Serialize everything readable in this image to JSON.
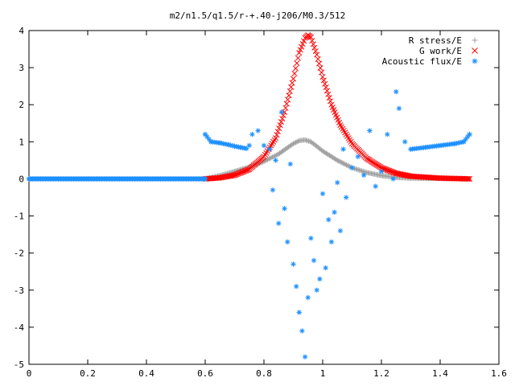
{
  "chart_data": {
    "type": "scatter",
    "title": "m2/n1.5/q1.5/r-+.40-j206/M0.3/512",
    "xlabel": "",
    "ylabel": "",
    "xlim": [
      0,
      1.6
    ],
    "ylim": [
      -5,
      4
    ],
    "xticks": [
      "0",
      "0.2",
      "0.4",
      "0.6",
      "0.8",
      "1",
      "1.2",
      "1.4",
      "1.6"
    ],
    "yticks": [
      "4",
      "3",
      "2",
      "1",
      "0",
      "-1",
      "-2",
      "-3",
      "-4",
      "-5"
    ],
    "grid": false,
    "legend_position": "top-right",
    "series": [
      {
        "name": "R stress/E",
        "marker": "plus",
        "color": "#a0a0a0",
        "points": [
          [
            0.6,
            0.0
          ],
          [
            0.65,
            0.09
          ],
          [
            0.7,
            0.2
          ],
          [
            0.75,
            0.32
          ],
          [
            0.8,
            0.47
          ],
          [
            0.85,
            0.67
          ],
          [
            0.88,
            0.84
          ],
          [
            0.9,
            0.95
          ],
          [
            0.92,
            1.03
          ],
          [
            0.94,
            1.05
          ],
          [
            0.96,
            1.0
          ],
          [
            0.98,
            0.88
          ],
          [
            1.0,
            0.75
          ],
          [
            1.05,
            0.5
          ],
          [
            1.1,
            0.3
          ],
          [
            1.15,
            0.17
          ],
          [
            1.2,
            0.09
          ],
          [
            1.25,
            0.04
          ],
          [
            1.3,
            0.02
          ],
          [
            1.4,
            0.01
          ],
          [
            1.5,
            0.0
          ]
        ]
      },
      {
        "name": "G work/E",
        "marker": "cross",
        "color": "#ff0000",
        "points": [
          [
            0.6,
            0.0
          ],
          [
            0.65,
            0.03
          ],
          [
            0.7,
            0.1
          ],
          [
            0.75,
            0.26
          ],
          [
            0.8,
            0.6
          ],
          [
            0.84,
            1.1
          ],
          [
            0.87,
            1.8
          ],
          [
            0.9,
            2.7
          ],
          [
            0.92,
            3.4
          ],
          [
            0.94,
            3.8
          ],
          [
            0.95,
            3.88
          ],
          [
            0.96,
            3.82
          ],
          [
            0.98,
            3.35
          ],
          [
            1.0,
            2.75
          ],
          [
            1.03,
            2.0
          ],
          [
            1.06,
            1.45
          ],
          [
            1.1,
            0.95
          ],
          [
            1.15,
            0.55
          ],
          [
            1.2,
            0.3
          ],
          [
            1.25,
            0.15
          ],
          [
            1.3,
            0.07
          ],
          [
            1.4,
            0.02
          ],
          [
            1.5,
            0.0
          ]
        ]
      },
      {
        "name": "Acoustic flux/E",
        "marker": "star",
        "color": "#1e90ff",
        "points": [
          [
            0.6,
            1.2
          ],
          [
            0.62,
            1.0
          ],
          [
            0.65,
            0.97
          ],
          [
            0.68,
            0.92
          ],
          [
            0.7,
            0.88
          ],
          [
            0.72,
            0.85
          ],
          [
            0.74,
            0.82
          ],
          [
            0.75,
            0.9
          ],
          [
            0.76,
            1.2
          ],
          [
            0.78,
            1.3
          ],
          [
            0.8,
            0.9
          ],
          [
            0.82,
            0.8
          ],
          [
            0.83,
            -0.3
          ],
          [
            0.84,
            0.5
          ],
          [
            0.85,
            -1.2
          ],
          [
            0.86,
            1.8
          ],
          [
            0.87,
            -0.8
          ],
          [
            0.88,
            -1.7
          ],
          [
            0.89,
            0.4
          ],
          [
            0.9,
            -2.3
          ],
          [
            0.91,
            -2.9
          ],
          [
            0.92,
            -3.6
          ],
          [
            0.93,
            -4.1
          ],
          [
            0.94,
            -4.8
          ],
          [
            0.95,
            -3.2
          ],
          [
            0.96,
            -1.6
          ],
          [
            0.97,
            -2.2
          ],
          [
            0.98,
            -3.0
          ],
          [
            0.99,
            -2.7
          ],
          [
            1.0,
            -0.4
          ],
          [
            1.01,
            -2.4
          ],
          [
            1.02,
            -1.1
          ],
          [
            1.03,
            -1.7
          ],
          [
            1.04,
            -0.9
          ],
          [
            1.05,
            -0.1
          ],
          [
            1.06,
            -1.4
          ],
          [
            1.07,
            0.8
          ],
          [
            1.08,
            -0.5
          ],
          [
            1.1,
            0.3
          ],
          [
            1.12,
            0.6
          ],
          [
            1.14,
            0.1
          ],
          [
            1.16,
            1.3
          ],
          [
            1.18,
            -0.2
          ],
          [
            1.2,
            0.2
          ],
          [
            1.22,
            1.2
          ],
          [
            1.24,
            0.0
          ],
          [
            1.25,
            2.35
          ],
          [
            1.26,
            1.9
          ],
          [
            1.28,
            1.0
          ],
          [
            1.3,
            0.8
          ],
          [
            1.35,
            0.85
          ],
          [
            1.4,
            0.9
          ],
          [
            1.45,
            0.95
          ],
          [
            1.48,
            1.0
          ],
          [
            1.5,
            1.2
          ],
          [
            0.0,
            0.0
          ],
          [
            0.2,
            0.0
          ],
          [
            0.4,
            0.0
          ],
          [
            0.6,
            0.0
          ]
        ]
      }
    ]
  }
}
